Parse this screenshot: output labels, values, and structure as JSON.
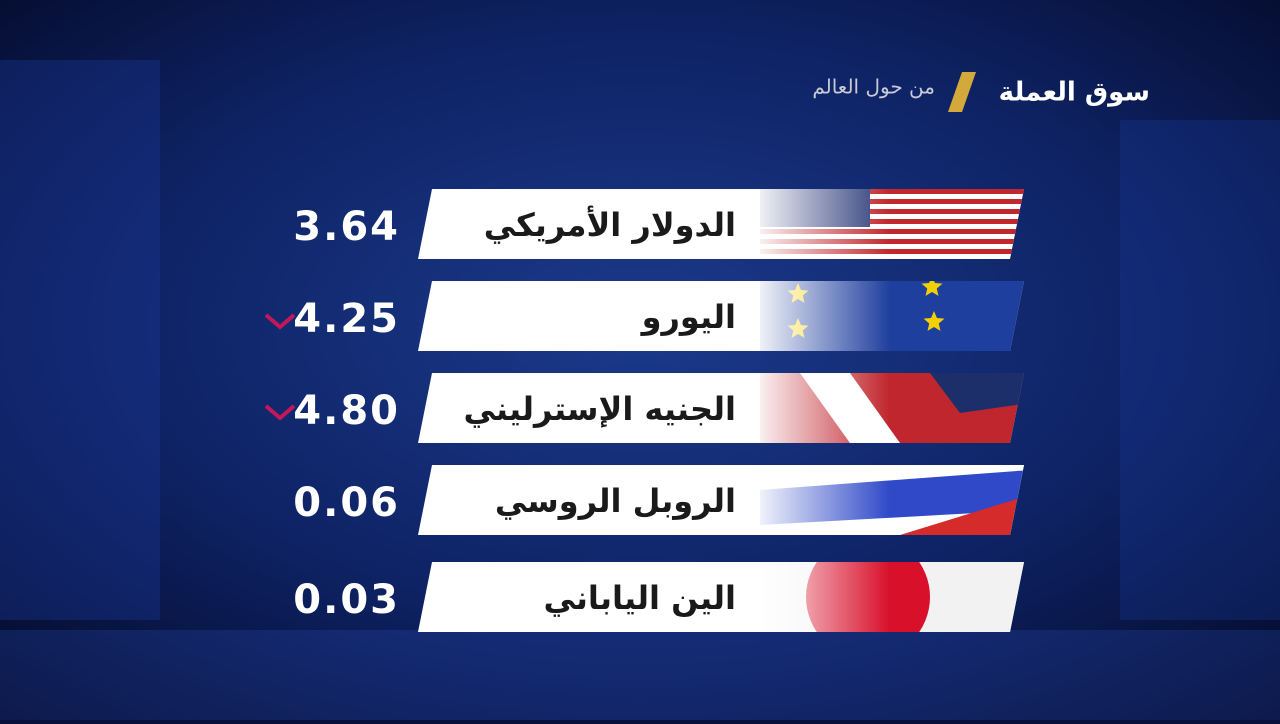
{
  "header": {
    "title": "سوق العملة",
    "subtitle": "من حول العالم"
  },
  "table": {
    "rows": [
      [
        "الدولار الأمريكي",
        "3.64"
      ],
      [
        "اليورو",
        "4.25"
      ],
      [
        "الجنيه الإسترليني",
        "4.80"
      ],
      [
        "الروبل الروسي",
        "0.06"
      ],
      [
        "الين الياباني",
        "0.03"
      ]
    ]
  }
}
